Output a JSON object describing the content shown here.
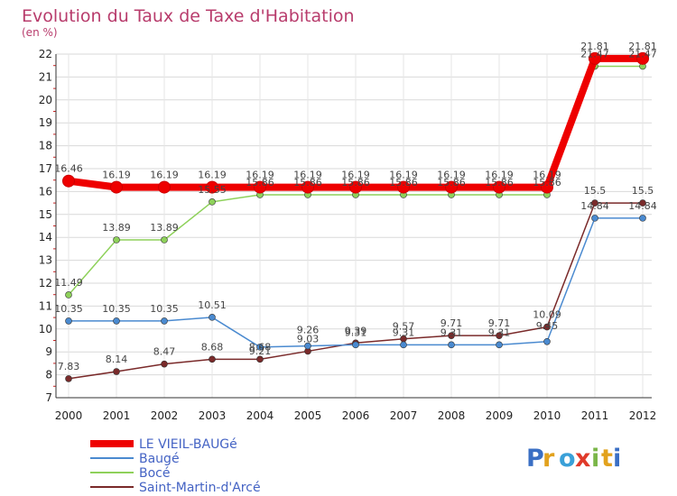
{
  "chart_data": {
    "type": "line",
    "title": "Evolution du Taux de Taxe d'Habitation",
    "unit_label": "(en %)",
    "x": [
      "2000",
      "2001",
      "2002",
      "2003",
      "2004",
      "2005",
      "2006",
      "2007",
      "2008",
      "2009",
      "2010",
      "2011",
      "2012"
    ],
    "ylim": [
      7,
      22
    ],
    "yticks": [
      "7",
      "8",
      "9",
      "10",
      "11",
      "12",
      "13",
      "14",
      "15",
      "16",
      "17",
      "18",
      "19",
      "20",
      "21",
      "22"
    ],
    "grid": "horizontal",
    "legend_position": "bottom-left",
    "series": [
      {
        "name": "LE VIEIL-BAUGé",
        "color": "#ee0000",
        "values": [
          16.46,
          16.19,
          16.19,
          16.19,
          16.19,
          16.19,
          16.19,
          16.19,
          16.19,
          16.19,
          16.19,
          21.81,
          21.81
        ],
        "labels": [
          "16.46",
          "16.19",
          "16.19",
          "16.19",
          "16.19",
          "16.19",
          "16.19",
          "16.19",
          "16.19",
          "16.19",
          "16.19",
          "21.81",
          "21.81"
        ]
      },
      {
        "name": "Baugé",
        "color": "#4a8ad0",
        "values": [
          10.35,
          10.35,
          10.35,
          10.51,
          9.21,
          9.26,
          9.31,
          9.31,
          9.31,
          9.31,
          9.45,
          14.84,
          14.84
        ],
        "labels": [
          "10.35",
          "10.35",
          "10.35",
          "10.51",
          "9.21",
          "9.26",
          "9.31",
          "9.31",
          "9.31",
          "9.31",
          "9.45",
          "14.84",
          "14.84"
        ]
      },
      {
        "name": "Bocé",
        "color": "#8ed15a",
        "values": [
          11.49,
          13.89,
          13.89,
          15.55,
          15.86,
          15.86,
          15.86,
          15.86,
          15.86,
          15.86,
          15.86,
          21.47,
          21.47
        ],
        "labels": [
          "11.49",
          "13.89",
          "13.89",
          "15.55",
          "15.86",
          "15.86",
          "15.86",
          "15.86",
          "15.86",
          "15.86",
          "15.86",
          "21.47",
          "21.47"
        ]
      },
      {
        "name": "Saint-Martin-d'Arcé",
        "color": "#7a2a2a",
        "values": [
          7.83,
          8.14,
          8.47,
          8.68,
          8.68,
          9.03,
          9.39,
          9.57,
          9.71,
          9.71,
          10.09,
          15.5,
          15.5
        ],
        "labels": [
          "7.83",
          "8.14",
          "8.47",
          "8.68",
          "8.68",
          "9.03",
          "9.39",
          "9.57",
          "9.71",
          "9.71",
          "10.09",
          "15.5",
          "15.5"
        ]
      }
    ]
  },
  "brand": {
    "letters": [
      "P",
      "r",
      "o",
      "x",
      "i",
      "t",
      "i"
    ],
    "colors": [
      "#3a6fc4",
      "#e2a21e",
      "#3aa0d8",
      "#e03a2a",
      "#7ab648",
      "#e2a21e",
      "#3a6fc4"
    ]
  }
}
